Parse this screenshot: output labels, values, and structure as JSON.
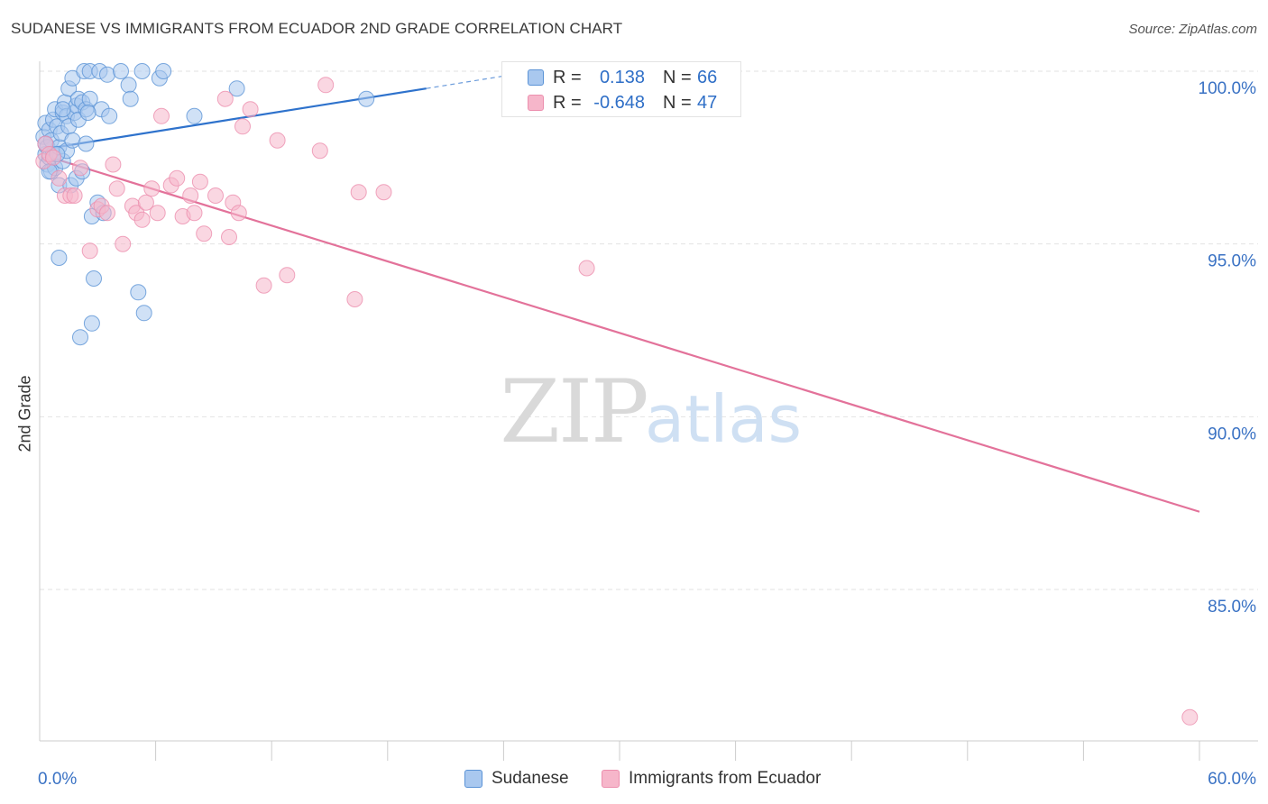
{
  "title": "SUDANESE VS IMMIGRANTS FROM ECUADOR 2ND GRADE CORRELATION CHART",
  "source": "Source: ZipAtlas.com",
  "watermark": {
    "zip": "ZIP",
    "atlas": "atlas"
  },
  "legend": {
    "rows": [
      {
        "r_label": "R =",
        "r_value": "0.138",
        "n_label": "N =",
        "n_value": "66"
      },
      {
        "r_label": "R =",
        "r_value": "-0.648",
        "n_label": "N =",
        "n_value": "47"
      }
    ]
  },
  "bottom_legend": {
    "series1": "Sudanese",
    "series2": "Immigrants from Ecuador"
  },
  "colors": {
    "blue_fill": "#a9c8ef",
    "blue_stroke": "#5b93d6",
    "blue_line": "#2e72cc",
    "pink_fill": "#f6b6ca",
    "pink_stroke": "#ec8fae",
    "pink_line": "#e3729a",
    "tick_text": "#3a72c4",
    "grid": "#e2e2e2"
  },
  "chart_data": {
    "type": "scatter",
    "title": "SUDANESE VS IMMIGRANTS FROM ECUADOR 2ND GRADE CORRELATION CHART",
    "xlabel": "",
    "ylabel": "2nd Grade",
    "xlim": [
      0,
      60
    ],
    "ylim": [
      80.5,
      100.8
    ],
    "x_tick_labels": [
      {
        "value": 0,
        "label": "0.0%"
      },
      {
        "value": 60,
        "label": "60.0%"
      }
    ],
    "y_tick_labels": [
      {
        "value": 100,
        "label": "100.0%"
      },
      {
        "value": 95,
        "label": "95.0%"
      },
      {
        "value": 90,
        "label": "90.0%"
      },
      {
        "value": 85,
        "label": "85.0%"
      }
    ],
    "x_minor_ticks": [
      6,
      12,
      18,
      24,
      30,
      36,
      42,
      48,
      54
    ],
    "grid": true,
    "series": [
      {
        "name": "Sudanese",
        "r": 0.138,
        "n": 66,
        "trend": {
          "x": [
            0.3,
            20.0
          ],
          "y": [
            97.75,
            99.5
          ],
          "dashed_to": [
            25.0,
            99.95
          ]
        },
        "points": [
          [
            0.2,
            98.1
          ],
          [
            0.3,
            97.6
          ],
          [
            0.3,
            98.5
          ],
          [
            0.4,
            97.3
          ],
          [
            0.4,
            97.8
          ],
          [
            0.5,
            98.3
          ],
          [
            0.5,
            97.5
          ],
          [
            0.6,
            98.0
          ],
          [
            0.6,
            97.1
          ],
          [
            0.7,
            98.6
          ],
          [
            0.7,
            97.6
          ],
          [
            0.8,
            98.9
          ],
          [
            0.8,
            97.2
          ],
          [
            0.9,
            98.4
          ],
          [
            1.0,
            97.8
          ],
          [
            1.0,
            96.7
          ],
          [
            1.0,
            94.6
          ],
          [
            1.1,
            98.2
          ],
          [
            1.2,
            98.8
          ],
          [
            1.2,
            97.4
          ],
          [
            1.3,
            99.1
          ],
          [
            1.4,
            98.7
          ],
          [
            1.4,
            97.7
          ],
          [
            1.5,
            99.5
          ],
          [
            1.5,
            98.4
          ],
          [
            1.6,
            96.7
          ],
          [
            1.7,
            99.8
          ],
          [
            1.7,
            98.0
          ],
          [
            1.8,
            98.8
          ],
          [
            1.9,
            99.0
          ],
          [
            1.9,
            96.9
          ],
          [
            2.0,
            99.2
          ],
          [
            2.0,
            98.6
          ],
          [
            2.1,
            92.3
          ],
          [
            2.2,
            99.1
          ],
          [
            2.2,
            97.1
          ],
          [
            2.3,
            100.0
          ],
          [
            2.4,
            98.9
          ],
          [
            2.4,
            97.9
          ],
          [
            2.6,
            100.0
          ],
          [
            2.6,
            99.2
          ],
          [
            2.7,
            95.8
          ],
          [
            2.7,
            92.7
          ],
          [
            2.8,
            94.0
          ],
          [
            3.0,
            96.2
          ],
          [
            3.1,
            100.0
          ],
          [
            3.2,
            98.9
          ],
          [
            3.3,
            95.9
          ],
          [
            3.5,
            99.9
          ],
          [
            3.6,
            98.7
          ],
          [
            4.2,
            100.0
          ],
          [
            4.6,
            99.6
          ],
          [
            4.7,
            99.2
          ],
          [
            5.1,
            93.6
          ],
          [
            5.3,
            100.0
          ],
          [
            5.4,
            93.0
          ],
          [
            6.2,
            99.8
          ],
          [
            6.4,
            100.0
          ],
          [
            8.0,
            98.7
          ],
          [
            10.2,
            99.5
          ],
          [
            16.9,
            99.2
          ],
          [
            0.5,
            97.1
          ],
          [
            1.2,
            98.9
          ],
          [
            0.9,
            97.6
          ],
          [
            2.5,
            98.8
          ],
          [
            0.3,
            97.9
          ]
        ]
      },
      {
        "name": "Immigrants from Ecuador",
        "r": -0.648,
        "n": 47,
        "trend": {
          "x": [
            0.3,
            60.0
          ],
          "y": [
            97.55,
            87.25
          ]
        },
        "points": [
          [
            0.2,
            97.4
          ],
          [
            0.3,
            97.9
          ],
          [
            0.5,
            97.6
          ],
          [
            0.7,
            97.5
          ],
          [
            1.0,
            96.9
          ],
          [
            1.3,
            96.4
          ],
          [
            1.6,
            96.4
          ],
          [
            1.8,
            96.4
          ],
          [
            2.1,
            97.2
          ],
          [
            2.6,
            94.8
          ],
          [
            3.0,
            96.0
          ],
          [
            3.2,
            96.1
          ],
          [
            3.5,
            95.9
          ],
          [
            3.8,
            97.3
          ],
          [
            4.0,
            96.6
          ],
          [
            4.3,
            95.0
          ],
          [
            4.8,
            96.1
          ],
          [
            5.0,
            95.9
          ],
          [
            5.3,
            95.7
          ],
          [
            5.5,
            96.2
          ],
          [
            5.8,
            96.6
          ],
          [
            6.1,
            95.9
          ],
          [
            6.3,
            98.7
          ],
          [
            6.8,
            96.7
          ],
          [
            7.1,
            96.9
          ],
          [
            7.4,
            95.8
          ],
          [
            7.8,
            96.4
          ],
          [
            8.0,
            95.9
          ],
          [
            8.3,
            96.8
          ],
          [
            8.5,
            95.3
          ],
          [
            9.1,
            96.4
          ],
          [
            9.6,
            99.2
          ],
          [
            9.8,
            95.2
          ],
          [
            10.0,
            96.2
          ],
          [
            10.3,
            95.9
          ],
          [
            10.5,
            98.4
          ],
          [
            10.9,
            98.9
          ],
          [
            11.6,
            93.8
          ],
          [
            12.3,
            98.0
          ],
          [
            12.8,
            94.1
          ],
          [
            14.5,
            97.7
          ],
          [
            14.8,
            99.6
          ],
          [
            16.3,
            93.4
          ],
          [
            16.5,
            96.5
          ],
          [
            17.8,
            96.5
          ],
          [
            28.3,
            94.3
          ],
          [
            59.5,
            81.3
          ]
        ]
      }
    ]
  }
}
